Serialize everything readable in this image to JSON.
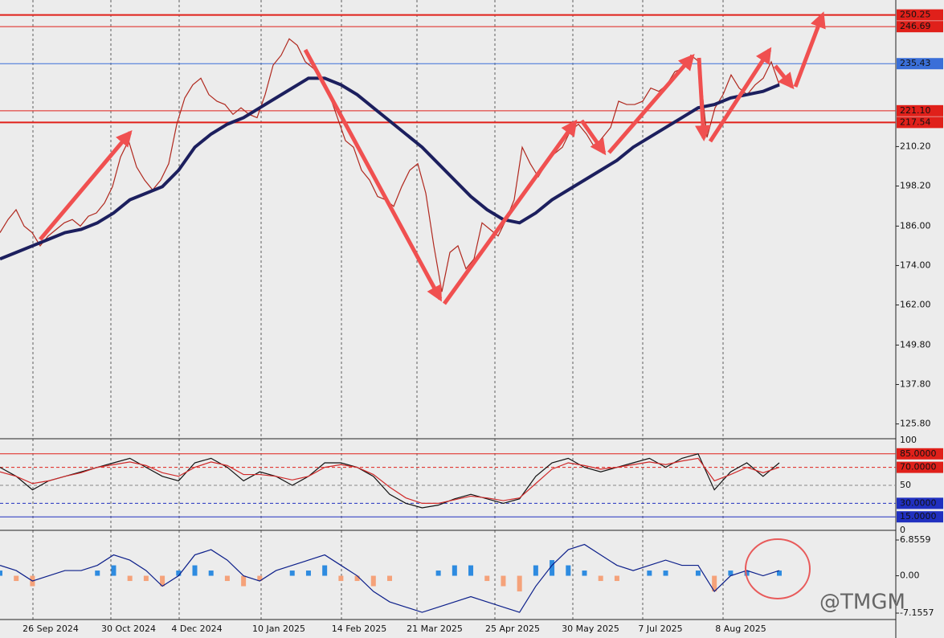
{
  "chart_data": {
    "type": "price-chart",
    "watermark": "@TMGM",
    "x_labels": [
      "26 Sep 2024",
      "30 Oct 2024",
      "4 Dec 2024",
      "10 Jan 2025",
      "14 Feb 2025",
      "21 Mar 2025",
      "25 Apr 2025",
      "30 May 2025",
      "7 Jul 2025",
      "8 Aug 2025"
    ],
    "price": {
      "ylim": [
        121.3,
        254.8
      ],
      "yticks": [
        {
          "value": 125.8,
          "label": "125.80"
        },
        {
          "value": 137.8,
          "label": "137.80"
        },
        {
          "value": 149.8,
          "label": "149.80"
        },
        {
          "value": 162,
          "label": "162.00"
        },
        {
          "value": 174,
          "label": "174.00"
        },
        {
          "value": 186,
          "label": "186.00"
        },
        {
          "value": 198.2,
          "label": "198.20"
        },
        {
          "value": 210.2,
          "label": "210.20"
        }
      ],
      "levels": [
        {
          "value": 250.25,
          "color": "#e0201a",
          "width": 2
        },
        {
          "value": 246.69,
          "color": "#e0201a",
          "width": 1
        },
        {
          "value": 235.43,
          "color": "#3a6fd8",
          "width": 1
        },
        {
          "value": 221.1,
          "label": "221.10",
          "color": "#e0201a",
          "width": 1
        },
        {
          "value": 217.54,
          "color": "#e0201a",
          "width": 2
        }
      ],
      "series": [
        {
          "name": "Close",
          "color": "#b0281e",
          "values": [
            184,
            188,
            191,
            186,
            184,
            180,
            183,
            185,
            187,
            188,
            186,
            189,
            190,
            193,
            198,
            207,
            212,
            204,
            200,
            197,
            200,
            205,
            217,
            225,
            229,
            231,
            226,
            224,
            223,
            220,
            222,
            220,
            219,
            226,
            235,
            238,
            243,
            241,
            236,
            234,
            231,
            226,
            219,
            212,
            210,
            203,
            200,
            195,
            194,
            192,
            198,
            203,
            205,
            196,
            180,
            166,
            178,
            180,
            173,
            176,
            187,
            185,
            183,
            188,
            194,
            210,
            205,
            201,
            205,
            208,
            210,
            215,
            217,
            214,
            210,
            213,
            216,
            224,
            223,
            223,
            224,
            228,
            227,
            229,
            233,
            234,
            238,
            236,
            213,
            222,
            226,
            232,
            228,
            226,
            229,
            231,
            236,
            229
          ]
        },
        {
          "name": "MA",
          "color": "#1c1f5e",
          "values": [
            176,
            178,
            180,
            182,
            184,
            185,
            187,
            190,
            194,
            196,
            198,
            203,
            210,
            214,
            217,
            219,
            222,
            225,
            228,
            231,
            231,
            229,
            226,
            222,
            218,
            214,
            210,
            205,
            200,
            195,
            191,
            188,
            187,
            190,
            194,
            197,
            200,
            203,
            206,
            210,
            213,
            216,
            219,
            222,
            223,
            225,
            226,
            227,
            229
          ]
        }
      ]
    },
    "stochastic": {
      "ylim": [
        0,
        100
      ],
      "yticks": [
        0,
        {
          "value": 15,
          "label": "15.0000"
        },
        {
          "value": 30,
          "label": "30.0000"
        },
        50,
        {
          "value": 70,
          "label": "70.0000"
        },
        {
          "value": 85,
          "label": "85.0000"
        },
        100
      ],
      "series": [
        {
          "name": "K",
          "color": "#111111",
          "values": [
            70,
            60,
            45,
            55,
            60,
            65,
            70,
            75,
            80,
            70,
            60,
            55,
            75,
            80,
            70,
            55,
            65,
            60,
            50,
            60,
            75,
            75,
            70,
            60,
            40,
            30,
            25,
            28,
            35,
            40,
            35,
            30,
            35,
            60,
            75,
            80,
            70,
            65,
            70,
            75,
            80,
            70,
            80,
            85,
            45,
            65,
            75,
            60,
            75
          ]
        },
        {
          "name": "D",
          "color": "#d02a2a",
          "values": [
            65,
            60,
            52,
            55,
            60,
            64,
            70,
            73,
            76,
            72,
            64,
            60,
            70,
            76,
            72,
            62,
            62,
            60,
            56,
            60,
            70,
            73,
            70,
            62,
            48,
            36,
            30,
            30,
            34,
            38,
            36,
            33,
            36,
            52,
            68,
            75,
            72,
            68,
            70,
            73,
            76,
            73,
            77,
            80,
            55,
            62,
            70,
            64,
            70
          ]
        }
      ]
    },
    "macd": {
      "ylim": [
        -8.23,
        8.4
      ],
      "yticks": [
        {
          "value": -7.1557,
          "label": "-7.1557"
        },
        {
          "value": 0,
          "label": "0.00"
        },
        {
          "value": 6.8559,
          "label": "6.8559"
        }
      ],
      "pos_color": "#2e8be0",
      "neg_color": "#f5a27a",
      "histogram": [
        1,
        -1,
        -2,
        0,
        0,
        0,
        1,
        2,
        -1,
        -1,
        -2,
        1,
        2,
        1,
        -1,
        -2,
        -1,
        0,
        1,
        1,
        2,
        -1,
        -1,
        -2,
        -1,
        0,
        0,
        1,
        2,
        2,
        -1,
        -2,
        -3,
        2,
        3,
        2,
        1,
        -1,
        -1,
        0,
        1,
        1,
        0,
        1,
        -3,
        1,
        1,
        0,
        1
      ],
      "series": [
        {
          "name": "MACD",
          "color": "#0c1f8a",
          "values": [
            2,
            1,
            -1,
            0,
            1,
            1,
            2,
            4,
            3,
            1,
            -2,
            0,
            4,
            5,
            3,
            0,
            -1,
            1,
            2,
            3,
            4,
            2,
            0,
            -3,
            -5,
            -6,
            -7,
            -6,
            -5,
            -4,
            -5,
            -6,
            -7,
            -2,
            2,
            5,
            6,
            4,
            2,
            1,
            2,
            3,
            2,
            2,
            -3,
            0,
            1,
            0,
            1
          ]
        }
      ]
    }
  }
}
